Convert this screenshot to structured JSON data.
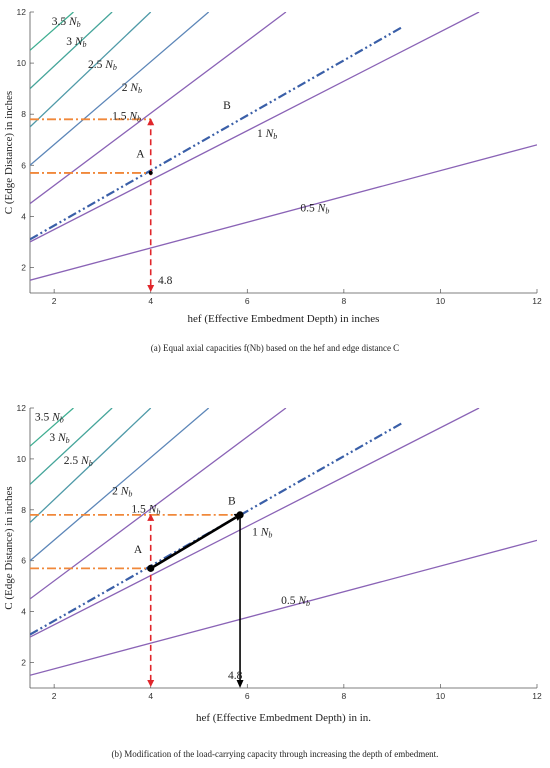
{
  "chart_data": [
    {
      "type": "line",
      "caption": "(a)   Equal axial capacities f(Nb) based on the hef and edge distance C",
      "xlabel": "hef (Effective Embedment Depth) in inches",
      "ylabel": "C (Edge Distance) in inches",
      "xlim": [
        1.5,
        12
      ],
      "ylim": [
        1,
        12
      ],
      "x_ticks": [
        "2",
        "4",
        "6",
        "8",
        "10",
        "12"
      ],
      "y_ticks": [
        "2",
        "4",
        "6",
        "8",
        "10",
        "12"
      ],
      "grid": false,
      "series": [
        {
          "name": "0.5 Nb",
          "color": "#8a63b6",
          "style": "solid",
          "x": [
            1.5,
            12
          ],
          "y": [
            1.5,
            6.8
          ]
        },
        {
          "name": "1 Nb",
          "color": "#8a63b6",
          "style": "solid",
          "x": [
            1.5,
            10.8
          ],
          "y": [
            3.0,
            12.0
          ]
        },
        {
          "name": "1.5 Nb",
          "color": "#8a63b6",
          "style": "solid",
          "x": [
            1.5,
            6.8
          ],
          "y": [
            4.5,
            12.0
          ]
        },
        {
          "name": "2 Nb",
          "color": "#5c86b8",
          "style": "solid",
          "x": [
            1.5,
            5.2
          ],
          "y": [
            6.0,
            12.0
          ]
        },
        {
          "name": "2.5 Nb",
          "color": "#4f9aa8",
          "style": "solid",
          "x": [
            1.5,
            4.0
          ],
          "y": [
            7.5,
            12.0
          ]
        },
        {
          "name": "3 Nb",
          "color": "#45a59a",
          "style": "solid",
          "x": [
            1.5,
            3.2
          ],
          "y": [
            9.0,
            12.0
          ]
        },
        {
          "name": "3.5 Nb",
          "color": "#3fae91",
          "style": "solid",
          "x": [
            1.5,
            2.4
          ],
          "y": [
            10.5,
            12.0
          ]
        },
        {
          "name": "",
          "color": "#3a5fa8",
          "style": "dashdot",
          "x": [
            1.5,
            9.2
          ],
          "y": [
            3.1,
            11.4
          ]
        }
      ],
      "annotations": [
        {
          "text": "A",
          "x": 3.7,
          "y": 6.3
        },
        {
          "text": "B",
          "x": 5.5,
          "y": 8.2
        },
        {
          "text": "4.8",
          "x": 4.15,
          "y": 1.35
        }
      ],
      "guides": {
        "vertical_red_x": 4.0,
        "vertical_red_top": 7.8,
        "orange_y_A": 5.7,
        "orange_y_B": 7.8,
        "point_A": [
          4.0,
          5.7
        ]
      },
      "label_positions": [
        {
          "name": "3.5 Nb",
          "x": 1.95,
          "y": 11.5
        },
        {
          "name": "3 Nb",
          "x": 2.25,
          "y": 10.7
        },
        {
          "name": "2.5 Nb",
          "x": 2.7,
          "y": 9.8
        },
        {
          "name": "2 Nb",
          "x": 3.4,
          "y": 8.9
        },
        {
          "name": "1.5 Nb",
          "x": 3.2,
          "y": 7.8
        },
        {
          "name": "1 Nb",
          "x": 6.2,
          "y": 7.1
        },
        {
          "name": "0.5 Nb",
          "x": 7.1,
          "y": 4.2
        }
      ]
    },
    {
      "type": "line",
      "caption": "(b)   Modification of the load-carrying capacity through increasing the depth of embedment.",
      "xlabel": "hef (Effective Embedment Depth) in in.",
      "ylabel": "C (Edge Distance) in inches",
      "xlim": [
        1.5,
        12
      ],
      "ylim": [
        1,
        12
      ],
      "x_ticks": [
        "2",
        "4",
        "6",
        "8",
        "10",
        "12"
      ],
      "y_ticks": [
        "2",
        "4",
        "6",
        "8",
        "10",
        "12"
      ],
      "grid": false,
      "series": [
        {
          "name": "0.5 Nb",
          "color": "#8a63b6",
          "style": "solid",
          "x": [
            1.5,
            12
          ],
          "y": [
            1.5,
            6.8
          ]
        },
        {
          "name": "1 Nb",
          "color": "#8a63b6",
          "style": "solid",
          "x": [
            1.5,
            10.8
          ],
          "y": [
            3.0,
            12.0
          ]
        },
        {
          "name": "1.5 Nb",
          "color": "#8a63b6",
          "style": "solid",
          "x": [
            1.5,
            6.8
          ],
          "y": [
            4.5,
            12.0
          ]
        },
        {
          "name": "2 Nb",
          "color": "#5c86b8",
          "style": "solid",
          "x": [
            1.5,
            5.2
          ],
          "y": [
            6.0,
            12.0
          ]
        },
        {
          "name": "2.5 Nb",
          "color": "#4f9aa8",
          "style": "solid",
          "x": [
            1.5,
            4.0
          ],
          "y": [
            7.5,
            12.0
          ]
        },
        {
          "name": "3 Nb",
          "color": "#45a59a",
          "style": "solid",
          "x": [
            1.5,
            3.2
          ],
          "y": [
            9.0,
            12.0
          ]
        },
        {
          "name": "3.5 Nb",
          "color": "#3fae91",
          "style": "solid",
          "x": [
            1.5,
            2.4
          ],
          "y": [
            10.5,
            12.0
          ]
        },
        {
          "name": "",
          "color": "#3a5fa8",
          "style": "dashdot",
          "x": [
            1.5,
            9.2
          ],
          "y": [
            3.1,
            11.4
          ]
        }
      ],
      "annotations": [
        {
          "text": "A",
          "x": 3.65,
          "y": 6.3
        },
        {
          "text": "B",
          "x": 5.6,
          "y": 8.2
        },
        {
          "text": "4.8",
          "x": 5.6,
          "y": 1.35
        }
      ],
      "guides": {
        "vertical_red_x": 4.0,
        "vertical_red_top": 7.8,
        "orange_y_A": 5.7,
        "orange_y_B": 7.8,
        "point_A": [
          4.0,
          5.7
        ],
        "point_B": [
          5.85,
          7.8
        ],
        "arrow_AB": true,
        "vertical_black_x": 5.85
      },
      "label_positions": [
        {
          "name": "3.5 Nb",
          "x": 1.6,
          "y": 11.5
        },
        {
          "name": "3 Nb",
          "x": 1.9,
          "y": 10.7
        },
        {
          "name": "2.5 Nb",
          "x": 2.2,
          "y": 9.8
        },
        {
          "name": "2 Nb",
          "x": 3.2,
          "y": 8.6
        },
        {
          "name": "1.5 Nb",
          "x": 3.6,
          "y": 7.9
        },
        {
          "name": "1 Nb",
          "x": 6.1,
          "y": 7.0
        },
        {
          "name": "0.5 Nb",
          "x": 6.7,
          "y": 4.3
        }
      ]
    }
  ]
}
